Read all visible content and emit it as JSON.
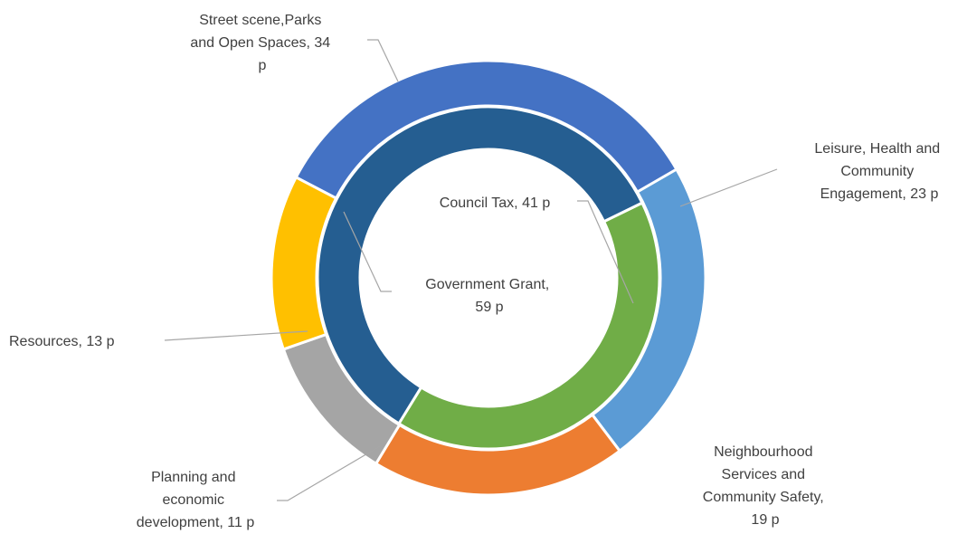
{
  "chart_data": {
    "type": "doughnut",
    "unit": "p",
    "legend": "none",
    "grid": false,
    "rings": [
      {
        "name": "",
        "ring": "outer",
        "slices": [
          {
            "label": "Leisure, Health and Community Engagement",
            "value": 23,
            "display": "Leisure, Health and Community Engagement, 23 p",
            "color": "#5b9bd5"
          },
          {
            "label": "Neighbourhood Services and Community Safety",
            "value": 19,
            "display": "Neighbourhood Services and Community Safety, 19 p",
            "color": "#ed7d31"
          },
          {
            "label": "Planning and economic development",
            "value": 11,
            "display": "Planning and economic development, 11 p",
            "color": "#a5a5a5"
          },
          {
            "label": "Resources",
            "value": 13,
            "display": "Resources, 13 p",
            "color": "#ffc000"
          },
          {
            "label": "Street scene,Parks and Open Spaces",
            "value": 34,
            "display": "Street scene,Parks and Open Spaces, 34 p",
            "color": "#4472c4"
          }
        ]
      },
      {
        "name": "",
        "ring": "inner",
        "slices": [
          {
            "label": "Council Tax",
            "value": 41,
            "display": "Council Tax, 41 p",
            "color": "#70ad47"
          },
          {
            "label": "Government Grant",
            "value": 59,
            "display": "Government Grant, 59 p",
            "color": "#255e91"
          }
        ]
      }
    ]
  }
}
